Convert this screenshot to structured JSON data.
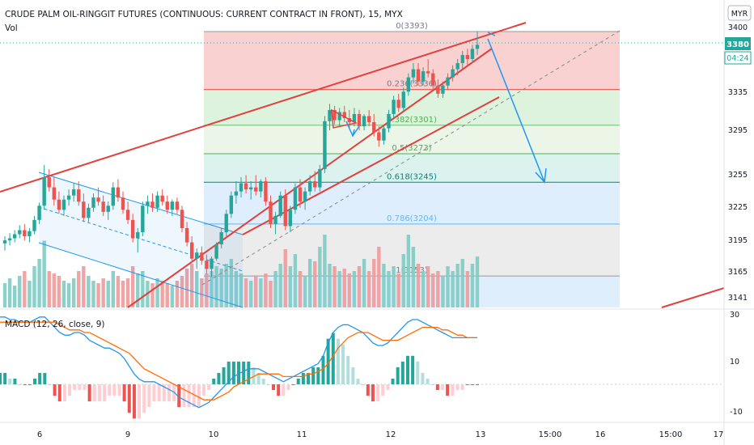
{
  "header": {
    "title": "CRUDE PALM OIL-RINGGIT FUTURES (CONTINUOUS: CURRENT CONTRACT IN FRONT), 15, MYX",
    "vol_label": "Vol",
    "currency_badge": "MYR"
  },
  "price_panel": {
    "last_price": "3380",
    "countdown": "04:24",
    "y_ticks": [
      "3400",
      "3335",
      "3295",
      "3255",
      "3225",
      "3195",
      "3165",
      "3141"
    ]
  },
  "macd_panel": {
    "label": "MACD (12, 26, close, 9)",
    "y_ticks": [
      "30",
      "10",
      "-10"
    ]
  },
  "x_axis": {
    "ticks": [
      "6",
      "9",
      "10",
      "11",
      "12",
      "13",
      "15:00",
      "16",
      "15:00",
      "17"
    ]
  },
  "fib_levels": [
    {
      "ratio": "0",
      "price": 3393,
      "label": "0(3393)"
    },
    {
      "ratio": "0.236",
      "price": 3336,
      "label": "0.236(3336)"
    },
    {
      "ratio": "0.382",
      "price": 3301,
      "label": "0.382(3301)"
    },
    {
      "ratio": "0.5",
      "price": 3273,
      "label": "0.5(3273)"
    },
    {
      "ratio": "0.618",
      "price": 3245,
      "label": "0.618(3245)"
    },
    {
      "ratio": "0.786",
      "price": 3204,
      "label": "0.786(3204)"
    },
    {
      "ratio": "1",
      "price": 3153,
      "label": "1(3153)"
    }
  ],
  "colors": {
    "up": "#26a69a",
    "down": "#ef5350",
    "trendline": "#e0403e",
    "channel": "#2196f3",
    "macd_line": "#2196f3",
    "signal_line": "#ff6d00",
    "fib_zone_0": "#f7c2c2",
    "fib_zone_1": "#d3efd3",
    "fib_zone_2": "#e4f3e0",
    "fib_zone_3": "#cfeee9",
    "fib_zone_4": "#d4e8fb",
    "fib_zone_5": "#e5e5e5",
    "fib_zone_6": "#d4e8fb"
  },
  "chart_data": {
    "type": "candlestick",
    "title": "CRUDE PALM OIL-RINGGIT FUTURES (CONTINUOUS: CURRENT CONTRACT IN FRONT), 15, MYX",
    "timeframe": "15",
    "last_price": 3380,
    "price_range": [
      3130,
      3405
    ],
    "macd_range": [
      -14,
      32
    ],
    "x_tick_labels": [
      "6",
      "9",
      "10",
      "11",
      "12",
      "13",
      "15:00",
      "16",
      "15:00",
      "17"
    ],
    "price_series": [
      {
        "o": 3185,
        "h": 3192,
        "l": 3178,
        "c": 3188
      },
      {
        "o": 3188,
        "h": 3195,
        "l": 3183,
        "c": 3190
      },
      {
        "o": 3190,
        "h": 3198,
        "l": 3186,
        "c": 3194
      },
      {
        "o": 3194,
        "h": 3203,
        "l": 3190,
        "c": 3198
      },
      {
        "o": 3198,
        "h": 3204,
        "l": 3188,
        "c": 3192
      },
      {
        "o": 3192,
        "h": 3200,
        "l": 3186,
        "c": 3197
      },
      {
        "o": 3197,
        "h": 3212,
        "l": 3194,
        "c": 3208
      },
      {
        "o": 3208,
        "h": 3225,
        "l": 3204,
        "c": 3222
      },
      {
        "o": 3222,
        "h": 3262,
        "l": 3218,
        "c": 3250
      },
      {
        "o": 3250,
        "h": 3258,
        "l": 3236,
        "c": 3240
      },
      {
        "o": 3240,
        "h": 3250,
        "l": 3222,
        "c": 3228
      },
      {
        "o": 3228,
        "h": 3236,
        "l": 3214,
        "c": 3218
      },
      {
        "o": 3218,
        "h": 3232,
        "l": 3212,
        "c": 3228
      },
      {
        "o": 3228,
        "h": 3238,
        "l": 3222,
        "c": 3232
      },
      {
        "o": 3232,
        "h": 3244,
        "l": 3226,
        "c": 3238
      },
      {
        "o": 3238,
        "h": 3246,
        "l": 3222,
        "c": 3226
      },
      {
        "o": 3226,
        "h": 3234,
        "l": 3206,
        "c": 3210
      },
      {
        "o": 3210,
        "h": 3224,
        "l": 3206,
        "c": 3220
      },
      {
        "o": 3220,
        "h": 3234,
        "l": 3216,
        "c": 3230
      },
      {
        "o": 3230,
        "h": 3240,
        "l": 3222,
        "c": 3226
      },
      {
        "o": 3226,
        "h": 3232,
        "l": 3212,
        "c": 3216
      },
      {
        "o": 3216,
        "h": 3226,
        "l": 3208,
        "c": 3222
      },
      {
        "o": 3222,
        "h": 3245,
        "l": 3218,
        "c": 3240
      },
      {
        "o": 3240,
        "h": 3248,
        "l": 3226,
        "c": 3230
      },
      {
        "o": 3230,
        "h": 3236,
        "l": 3214,
        "c": 3218
      },
      {
        "o": 3218,
        "h": 3226,
        "l": 3204,
        "c": 3208
      },
      {
        "o": 3208,
        "h": 3214,
        "l": 3186,
        "c": 3190
      },
      {
        "o": 3190,
        "h": 3200,
        "l": 3176,
        "c": 3196
      },
      {
        "o": 3196,
        "h": 3226,
        "l": 3192,
        "c": 3222
      },
      {
        "o": 3222,
        "h": 3232,
        "l": 3214,
        "c": 3226
      },
      {
        "o": 3226,
        "h": 3234,
        "l": 3216,
        "c": 3220
      },
      {
        "o": 3220,
        "h": 3236,
        "l": 3216,
        "c": 3232
      },
      {
        "o": 3232,
        "h": 3238,
        "l": 3222,
        "c": 3226
      },
      {
        "o": 3226,
        "h": 3232,
        "l": 3214,
        "c": 3218
      },
      {
        "o": 3218,
        "h": 3228,
        "l": 3212,
        "c": 3226
      },
      {
        "o": 3226,
        "h": 3230,
        "l": 3214,
        "c": 3218
      },
      {
        "o": 3218,
        "h": 3222,
        "l": 3196,
        "c": 3200
      },
      {
        "o": 3200,
        "h": 3206,
        "l": 3182,
        "c": 3186
      },
      {
        "o": 3186,
        "h": 3192,
        "l": 3166,
        "c": 3170
      },
      {
        "o": 3170,
        "h": 3180,
        "l": 3160,
        "c": 3176
      },
      {
        "o": 3176,
        "h": 3182,
        "l": 3164,
        "c": 3168
      },
      {
        "o": 3168,
        "h": 3174,
        "l": 3155,
        "c": 3160
      },
      {
        "o": 3160,
        "h": 3172,
        "l": 3152,
        "c": 3170
      },
      {
        "o": 3170,
        "h": 3186,
        "l": 3168,
        "c": 3184
      },
      {
        "o": 3184,
        "h": 3200,
        "l": 3180,
        "c": 3196
      },
      {
        "o": 3196,
        "h": 3218,
        "l": 3192,
        "c": 3214
      },
      {
        "o": 3214,
        "h": 3236,
        "l": 3210,
        "c": 3232
      },
      {
        "o": 3232,
        "h": 3246,
        "l": 3224,
        "c": 3236
      },
      {
        "o": 3236,
        "h": 3250,
        "l": 3230,
        "c": 3244
      },
      {
        "o": 3244,
        "h": 3252,
        "l": 3234,
        "c": 3238
      },
      {
        "o": 3238,
        "h": 3246,
        "l": 3228,
        "c": 3240
      },
      {
        "o": 3240,
        "h": 3252,
        "l": 3232,
        "c": 3236
      },
      {
        "o": 3236,
        "h": 3248,
        "l": 3230,
        "c": 3246
      },
      {
        "o": 3246,
        "h": 3250,
        "l": 3222,
        "c": 3226
      },
      {
        "o": 3226,
        "h": 3232,
        "l": 3200,
        "c": 3204
      },
      {
        "o": 3204,
        "h": 3216,
        "l": 3194,
        "c": 3212
      },
      {
        "o": 3212,
        "h": 3236,
        "l": 3210,
        "c": 3232
      },
      {
        "o": 3232,
        "h": 3238,
        "l": 3198,
        "c": 3202
      },
      {
        "o": 3202,
        "h": 3222,
        "l": 3196,
        "c": 3218
      },
      {
        "o": 3218,
        "h": 3244,
        "l": 3214,
        "c": 3240
      },
      {
        "o": 3240,
        "h": 3248,
        "l": 3220,
        "c": 3226
      },
      {
        "o": 3226,
        "h": 3240,
        "l": 3218,
        "c": 3236
      },
      {
        "o": 3236,
        "h": 3252,
        "l": 3232,
        "c": 3246
      },
      {
        "o": 3246,
        "h": 3256,
        "l": 3236,
        "c": 3240
      },
      {
        "o": 3240,
        "h": 3262,
        "l": 3236,
        "c": 3258
      },
      {
        "o": 3258,
        "h": 3310,
        "l": 3254,
        "c": 3305
      },
      {
        "o": 3305,
        "h": 3322,
        "l": 3296,
        "c": 3316
      },
      {
        "o": 3316,
        "h": 3320,
        "l": 3302,
        "c": 3306
      },
      {
        "o": 3306,
        "h": 3318,
        "l": 3300,
        "c": 3314
      },
      {
        "o": 3314,
        "h": 3320,
        "l": 3304,
        "c": 3308
      },
      {
        "o": 3308,
        "h": 3316,
        "l": 3298,
        "c": 3304
      },
      {
        "o": 3304,
        "h": 3318,
        "l": 3300,
        "c": 3312
      },
      {
        "o": 3312,
        "h": 3316,
        "l": 3296,
        "c": 3300
      },
      {
        "o": 3300,
        "h": 3312,
        "l": 3296,
        "c": 3310
      },
      {
        "o": 3310,
        "h": 3316,
        "l": 3300,
        "c": 3304
      },
      {
        "o": 3304,
        "h": 3312,
        "l": 3290,
        "c": 3294
      },
      {
        "o": 3294,
        "h": 3300,
        "l": 3280,
        "c": 3286
      },
      {
        "o": 3286,
        "h": 3300,
        "l": 3282,
        "c": 3298
      },
      {
        "o": 3298,
        "h": 3316,
        "l": 3294,
        "c": 3312
      },
      {
        "o": 3312,
        "h": 3330,
        "l": 3308,
        "c": 3326
      },
      {
        "o": 3326,
        "h": 3332,
        "l": 3314,
        "c": 3318
      },
      {
        "o": 3318,
        "h": 3338,
        "l": 3314,
        "c": 3334
      },
      {
        "o": 3334,
        "h": 3352,
        "l": 3330,
        "c": 3348
      },
      {
        "o": 3348,
        "h": 3362,
        "l": 3342,
        "c": 3356
      },
      {
        "o": 3356,
        "h": 3362,
        "l": 3340,
        "c": 3344
      },
      {
        "o": 3344,
        "h": 3358,
        "l": 3340,
        "c": 3354
      },
      {
        "o": 3354,
        "h": 3366,
        "l": 3348,
        "c": 3352
      },
      {
        "o": 3352,
        "h": 3356,
        "l": 3336,
        "c": 3340
      },
      {
        "o": 3340,
        "h": 3346,
        "l": 3328,
        "c": 3332
      },
      {
        "o": 3332,
        "h": 3344,
        "l": 3328,
        "c": 3340
      },
      {
        "o": 3340,
        "h": 3352,
        "l": 3336,
        "c": 3348
      },
      {
        "o": 3348,
        "h": 3360,
        "l": 3344,
        "c": 3356
      },
      {
        "o": 3356,
        "h": 3366,
        "l": 3350,
        "c": 3362
      },
      {
        "o": 3362,
        "h": 3374,
        "l": 3356,
        "c": 3370
      },
      {
        "o": 3370,
        "h": 3376,
        "l": 3360,
        "c": 3366
      },
      {
        "o": 3366,
        "h": 3380,
        "l": 3362,
        "c": 3376
      },
      {
        "o": 3376,
        "h": 3393,
        "l": 3370,
        "c": 3380
      }
    ],
    "volume_approx": [
      20,
      24,
      18,
      26,
      30,
      22,
      34,
      40,
      55,
      30,
      28,
      26,
      22,
      20,
      24,
      30,
      34,
      26,
      22,
      20,
      24,
      22,
      30,
      26,
      22,
      24,
      34,
      28,
      30,
      22,
      20,
      24,
      22,
      20,
      18,
      22,
      26,
      32,
      36,
      30,
      24,
      28,
      30,
      34,
      32,
      36,
      40,
      30,
      28,
      24,
      22,
      26,
      24,
      28,
      22,
      30,
      36,
      48,
      34,
      44,
      30,
      26,
      40,
      38,
      50,
      60,
      36,
      34,
      30,
      32,
      28,
      30,
      34,
      40,
      30,
      40,
      50,
      36,
      30,
      34,
      28,
      44,
      60,
      50,
      36,
      30,
      34,
      28,
      30,
      26,
      34,
      30,
      36,
      40,
      30,
      36,
      42
    ],
    "macd_series_approx": [
      26,
      26,
      25,
      25,
      24,
      24,
      24,
      25,
      26,
      26,
      24,
      22,
      20,
      19,
      19,
      20,
      20,
      19,
      17,
      16,
      15,
      14,
      14,
      13,
      12,
      10,
      7,
      4,
      2,
      1,
      1,
      1,
      0,
      -1,
      -2,
      -3,
      -5,
      -6,
      -7,
      -8,
      -9,
      -8,
      -7,
      -5,
      -3,
      -1,
      1,
      3,
      4,
      5,
      6,
      6,
      6,
      5,
      4,
      3,
      2,
      1,
      2,
      3,
      4,
      5,
      6,
      7,
      8,
      11,
      16,
      20,
      22,
      23,
      23,
      22,
      21,
      20,
      18,
      16,
      15,
      15,
      16,
      18,
      20,
      22,
      24,
      25,
      25,
      24,
      23,
      22,
      21,
      20,
      19,
      18,
      18,
      18,
      18,
      18,
      18
    ],
    "signal_series_approx": [
      24,
      24,
      24,
      24,
      24,
      24,
      24,
      24,
      24,
      24,
      24,
      24,
      23,
      22,
      21,
      21,
      21,
      20,
      20,
      19,
      18,
      17,
      16,
      15,
      14,
      13,
      12,
      10,
      8,
      6,
      5,
      4,
      3,
      2,
      1,
      0,
      -1,
      -2,
      -3,
      -4,
      -5,
      -6,
      -6,
      -6,
      -5,
      -4,
      -3,
      -1,
      0,
      1,
      2,
      3,
      4,
      4,
      4,
      4,
      4,
      3,
      3,
      3,
      3,
      3,
      4,
      4,
      5,
      6,
      8,
      11,
      14,
      16,
      18,
      19,
      20,
      20,
      20,
      19,
      18,
      17,
      17,
      17,
      17,
      18,
      19,
      20,
      21,
      22,
      22,
      22,
      22,
      21,
      21,
      20,
      19,
      19,
      18,
      18,
      18
    ],
    "fib_retracement": [
      {
        "ratio": 0,
        "price": 3393
      },
      {
        "ratio": 0.236,
        "price": 3336
      },
      {
        "ratio": 0.382,
        "price": 3301
      },
      {
        "ratio": 0.5,
        "price": 3273
      },
      {
        "ratio": 0.618,
        "price": 3245
      },
      {
        "ratio": 0.786,
        "price": 3204
      },
      {
        "ratio": 1,
        "price": 3153
      }
    ]
  }
}
